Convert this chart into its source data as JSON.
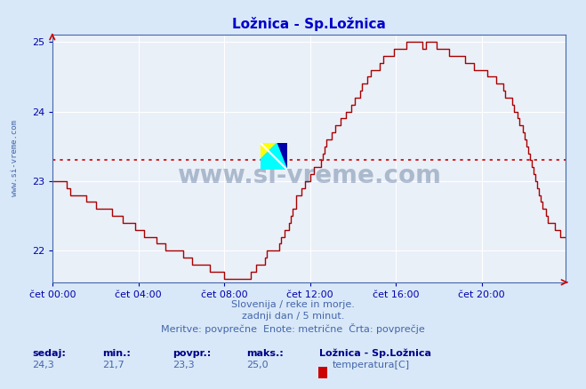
{
  "title": "Ložnica - Sp.Ložnica",
  "title_color": "#0000cc",
  "bg_color": "#d8e8f8",
  "plot_bg_color": "#eaf0f8",
  "grid_color": "#ffffff",
  "grid_minor_color": "#dde8f0",
  "line_color": "#aa0000",
  "avg_line_color": "#cc0000",
  "avg_value": 23.3,
  "y_min": 21.55,
  "y_max": 25.1,
  "y_ticks": [
    22,
    23,
    24,
    25
  ],
  "x_labels": [
    "čet 00:00",
    "čet 04:00",
    "čet 08:00",
    "čet 12:00",
    "čet 16:00",
    "čet 20:00"
  ],
  "x_tick_positions": [
    0,
    48,
    96,
    144,
    192,
    240
  ],
  "n_points": 288,
  "subtitle1": "Slovenija / reke in morje.",
  "subtitle2": "zadnji dan / 5 minut.",
  "subtitle3": "Meritve: povprečne  Enote: metrične  Črta: povprečje",
  "subtitle_color": "#4466aa",
  "footer_label_color": "#000088",
  "footer_value_color": "#4466aa",
  "watermark_text": "www.si-vreme.com",
  "watermark_color": "#1a3a6a",
  "watermark_alpha": 0.3,
  "sedaj": "24,3",
  "min_val": "21,7",
  "povpr": "23,3",
  "maks": "25,0",
  "legend_title": "Ložnica - Sp.Ložnica",
  "legend_label": "temperatura[C]",
  "legend_color": "#cc0000",
  "ylabel_text": "www.si-vreme.com",
  "ylabel_color": "#4466aa"
}
